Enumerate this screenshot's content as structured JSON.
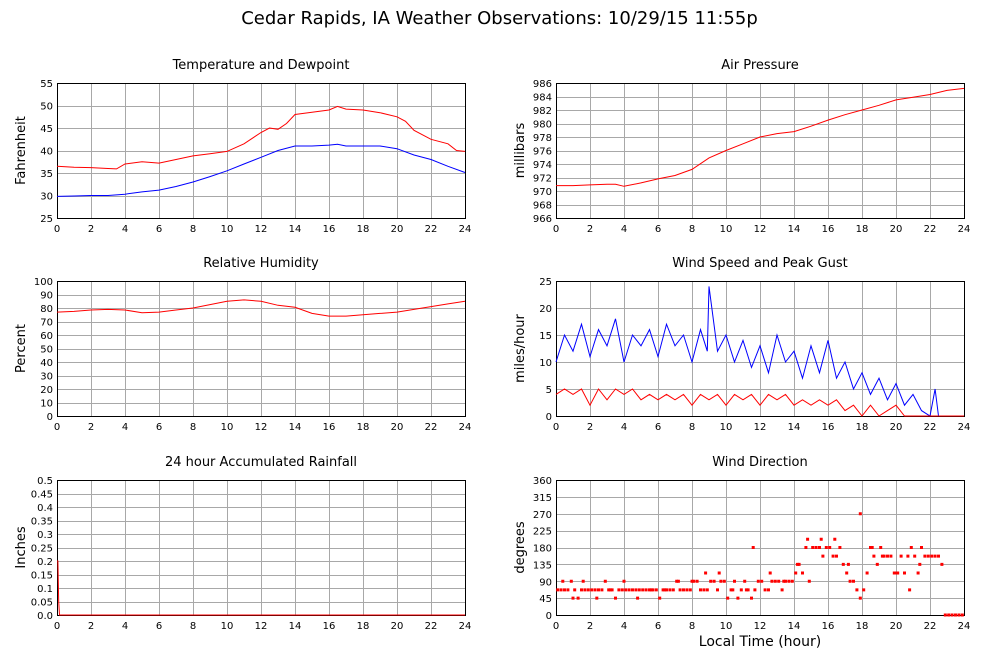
{
  "page": {
    "title": "Cedar Rapids, IA Weather Observations: 10/29/15 11:55p",
    "x_axis_label": "Local Time (hour)"
  },
  "chart_data": [
    {
      "type": "line",
      "title": "Temperature and Dewpoint",
      "xlabel": "",
      "ylabel": "Fahrenheit",
      "xlim": [
        0,
        24
      ],
      "ylim": [
        25,
        55
      ],
      "xticks": [
        0,
        2,
        4,
        6,
        8,
        10,
        12,
        14,
        16,
        18,
        20,
        22,
        24
      ],
      "yticks": [
        25,
        30,
        35,
        40,
        45,
        50,
        55
      ],
      "grid": true,
      "series": [
        {
          "color": "#ff0000",
          "x": [
            0,
            1,
            2,
            3,
            3.5,
            4,
            5,
            6,
            7,
            8,
            9,
            10,
            11,
            12,
            12.5,
            13,
            13.5,
            14,
            15,
            16,
            16.5,
            17,
            18,
            19,
            20,
            20.5,
            21,
            22,
            23,
            23.5,
            24
          ],
          "y": [
            36.5,
            36.3,
            36.2,
            36,
            35.9,
            37,
            37.5,
            37.2,
            38,
            38.8,
            39.3,
            39.8,
            41.5,
            44,
            45,
            44.7,
            46,
            48,
            48.5,
            49,
            49.8,
            49.2,
            49,
            48.4,
            47.5,
            46.5,
            44.5,
            42.5,
            41.5,
            40,
            39.8
          ]
        },
        {
          "color": "#0000ff",
          "x": [
            0,
            1,
            2,
            3,
            4,
            5,
            6,
            7,
            8,
            9,
            10,
            11,
            12,
            13,
            14,
            15,
            16,
            16.5,
            17,
            18,
            19,
            20,
            21,
            22,
            23,
            24
          ],
          "y": [
            29.8,
            29.9,
            30,
            30,
            30.3,
            30.8,
            31.2,
            32,
            33,
            34.2,
            35.5,
            37,
            38.5,
            40,
            41,
            41,
            41.2,
            41.4,
            41,
            41,
            41,
            40.4,
            39,
            38,
            36.5,
            35.1
          ]
        }
      ]
    },
    {
      "type": "line",
      "title": "Air Pressure",
      "xlabel": "",
      "ylabel": "millibars",
      "xlim": [
        0,
        24
      ],
      "ylim": [
        966,
        986
      ],
      "xticks": [
        0,
        2,
        4,
        6,
        8,
        10,
        12,
        14,
        16,
        18,
        20,
        22,
        24
      ],
      "yticks": [
        966,
        968,
        970,
        972,
        974,
        976,
        978,
        980,
        982,
        984,
        986
      ],
      "grid": true,
      "series": [
        {
          "color": "#ff0000",
          "x": [
            0,
            1,
            2,
            3,
            3.5,
            4,
            5,
            6,
            7,
            8,
            9,
            10,
            11,
            12,
            13,
            14,
            15,
            16,
            17,
            18,
            19,
            20,
            21,
            22,
            23,
            24
          ],
          "y": [
            970.8,
            970.8,
            970.9,
            971,
            971,
            970.7,
            971.2,
            971.8,
            972.3,
            973.2,
            974.9,
            976,
            977,
            978,
            978.5,
            978.8,
            979.6,
            980.5,
            981.3,
            982,
            982.7,
            983.5,
            983.9,
            984.3,
            984.9,
            985.2
          ]
        }
      ]
    },
    {
      "type": "line",
      "title": "Relative Humidity",
      "xlabel": "",
      "ylabel": "Percent",
      "xlim": [
        0,
        24
      ],
      "ylim": [
        0,
        100
      ],
      "xticks": [
        0,
        2,
        4,
        6,
        8,
        10,
        12,
        14,
        16,
        18,
        20,
        22,
        24
      ],
      "yticks": [
        0,
        10,
        20,
        30,
        40,
        50,
        60,
        70,
        80,
        90,
        100
      ],
      "grid": true,
      "series": [
        {
          "color": "#ff0000",
          "x": [
            0,
            1,
            2,
            3,
            4,
            5,
            6,
            7,
            8,
            9,
            10,
            11,
            12,
            13,
            14,
            15,
            16,
            17,
            18,
            19,
            20,
            21,
            22,
            23,
            24
          ],
          "y": [
            77,
            77.5,
            78.5,
            79,
            78.5,
            76.5,
            77,
            78.5,
            80,
            82.5,
            85,
            86,
            85,
            82,
            80.5,
            76,
            74,
            74,
            75,
            76,
            77,
            79,
            81,
            83,
            85
          ]
        }
      ]
    },
    {
      "type": "line",
      "title": "Wind Speed and Peak Gust",
      "xlabel": "",
      "ylabel": "miles/hour",
      "xlim": [
        0,
        24
      ],
      "ylim": [
        0,
        25
      ],
      "xticks": [
        0,
        2,
        4,
        6,
        8,
        10,
        12,
        14,
        16,
        18,
        20,
        22,
        24
      ],
      "yticks": [
        0,
        5,
        10,
        15,
        20,
        25
      ],
      "grid": true,
      "series": [
        {
          "color": "#0000ff",
          "x": [
            0,
            0.5,
            1,
            1.5,
            2,
            2.5,
            3,
            3.5,
            4,
            4.5,
            5,
            5.5,
            6,
            6.5,
            7,
            7.5,
            8,
            8.5,
            8.9,
            9,
            9.5,
            10,
            10.5,
            11,
            11.5,
            12,
            12.5,
            13,
            13.5,
            14,
            14.5,
            15,
            15.5,
            16,
            16.5,
            17,
            17.5,
            18,
            18.5,
            19,
            19.5,
            20,
            20.5,
            21,
            21.5,
            22,
            22.3,
            22.5,
            23,
            24
          ],
          "y": [
            10,
            15,
            12,
            17,
            11,
            16,
            13,
            18,
            10,
            15,
            13,
            16,
            11,
            17,
            13,
            15,
            10,
            16,
            12,
            24,
            12,
            15,
            10,
            14,
            9,
            13,
            8,
            15,
            10,
            12,
            7,
            13,
            8,
            14,
            7,
            10,
            5,
            8,
            4,
            7,
            3,
            6,
            2,
            4,
            1,
            0,
            5,
            0,
            0,
            0
          ]
        },
        {
          "color": "#ff0000",
          "x": [
            0,
            0.5,
            1,
            1.5,
            2,
            2.5,
            3,
            3.5,
            4,
            4.5,
            5,
            5.5,
            6,
            6.5,
            7,
            7.5,
            8,
            8.5,
            9,
            9.5,
            10,
            10.5,
            11,
            11.5,
            12,
            12.5,
            13,
            13.5,
            14,
            14.5,
            15,
            15.5,
            16,
            16.5,
            17,
            17.5,
            18,
            18.5,
            19,
            19.5,
            20,
            20.5,
            21,
            22,
            24
          ],
          "y": [
            4,
            5,
            4,
            5,
            2,
            5,
            3,
            5,
            4,
            5,
            3,
            4,
            3,
            4,
            3,
            4,
            2,
            4,
            3,
            4,
            2,
            4,
            3,
            4,
            2,
            4,
            3,
            4,
            2,
            3,
            2,
            3,
            2,
            3,
            1,
            2,
            0,
            2,
            0,
            1,
            2,
            0,
            0,
            0,
            0
          ]
        }
      ]
    },
    {
      "type": "line",
      "title": "24 hour Accumulated Rainfall",
      "xlabel": "",
      "ylabel": "Inches",
      "xlim": [
        0,
        24
      ],
      "ylim": [
        0,
        0.5
      ],
      "xticks": [
        0,
        2,
        4,
        6,
        8,
        10,
        12,
        14,
        16,
        18,
        20,
        22,
        24
      ],
      "yticks": [
        0,
        0.05,
        0.1,
        0.15,
        0.2,
        0.25,
        0.3,
        0.35,
        0.4,
        0.45,
        0.5
      ],
      "yticklabels": [
        "0.0",
        "0.05",
        "0.1",
        "0.15",
        "0.2",
        "0.25",
        "0.3",
        "0.35",
        "0.4",
        "0.45",
        "0.5"
      ],
      "grid": true,
      "series": [
        {
          "color": "#ff0000",
          "x": [
            0,
            0.05,
            0.1,
            0.15,
            24
          ],
          "y": [
            0.2,
            0.2,
            0.05,
            0,
            0
          ]
        }
      ]
    },
    {
      "type": "scatter",
      "title": "Wind Direction",
      "xlabel": "",
      "ylabel": "degrees",
      "xlim": [
        0,
        24
      ],
      "ylim": [
        0,
        360
      ],
      "xticks": [
        0,
        2,
        4,
        6,
        8,
        10,
        12,
        14,
        16,
        18,
        20,
        22,
        24
      ],
      "yticks": [
        0,
        45,
        90,
        135,
        180,
        225,
        270,
        315,
        360
      ],
      "grid": true,
      "series": [
        {
          "color": "#ff0000",
          "x": [
            0.1,
            0.3,
            0.5,
            0.7,
            0.9,
            1.1,
            1.3,
            1.5,
            1.7,
            1.9,
            2.1,
            2.3,
            2.5,
            2.7,
            2.9,
            3.1,
            3.3,
            3.5,
            3.7,
            3.9,
            4.1,
            4.3,
            4.5,
            4.7,
            4.9,
            5.1,
            5.3,
            5.5,
            5.7,
            5.9,
            6.1,
            6.3,
            6.5,
            6.7,
            6.9,
            7.1,
            7.3,
            7.5,
            7.7,
            7.9,
            8.1,
            8.3,
            8.5,
            8.7,
            8.9,
            9.1,
            9.3,
            9.5,
            9.7,
            9.9,
            10.1,
            10.3,
            10.5,
            10.7,
            10.9,
            11.1,
            11.3,
            11.5,
            11.7,
            11.9,
            12.1,
            12.3,
            12.5,
            12.7,
            12.9,
            13.1,
            13.3,
            13.5,
            13.7,
            13.9,
            14.1,
            14.3,
            14.5,
            14.7,
            14.9,
            15.1,
            15.3,
            15.5,
            15.7,
            15.9,
            16.1,
            16.3,
            16.5,
            16.7,
            16.9,
            17.1,
            17.3,
            17.5,
            17.7,
            17.9,
            18.1,
            18.3,
            18.5,
            18.7,
            18.9,
            19.1,
            19.3,
            19.5,
            19.7,
            19.9,
            20.1,
            20.3,
            20.5,
            20.7,
            20.9,
            21.1,
            21.3,
            21.5,
            21.7,
            21.9,
            22.1,
            22.3,
            22.5,
            22.7,
            22.9,
            23.1,
            23.3,
            23.5,
            23.7,
            23.9,
            0.4,
            1.0,
            1.6,
            2.4,
            3.2,
            4.0,
            4.8,
            5.6,
            6.4,
            7.2,
            8.0,
            8.8,
            9.6,
            10.4,
            11.2,
            11.6,
            12.6,
            13.4,
            14.2,
            14.8,
            15.6,
            16.4,
            17.2,
            17.9,
            18.6,
            19.2,
            20.0,
            20.8,
            21.4
          ],
          "y": [
            67,
            67,
            67,
            67,
            90,
            67,
            45,
            67,
            67,
            67,
            67,
            67,
            67,
            67,
            90,
            67,
            67,
            45,
            67,
            67,
            67,
            67,
            67,
            67,
            67,
            67,
            67,
            67,
            67,
            67,
            45,
            67,
            67,
            67,
            67,
            90,
            67,
            67,
            67,
            67,
            90,
            90,
            67,
            67,
            67,
            90,
            90,
            67,
            90,
            90,
            45,
            67,
            90,
            45,
            67,
            90,
            67,
            45,
            67,
            90,
            90,
            67,
            67,
            90,
            90,
            90,
            67,
            90,
            90,
            90,
            112,
            135,
            112,
            180,
            90,
            180,
            180,
            180,
            157,
            180,
            180,
            157,
            157,
            180,
            135,
            112,
            90,
            90,
            67,
            45,
            67,
            112,
            180,
            157,
            135,
            180,
            157,
            157,
            157,
            112,
            112,
            157,
            112,
            157,
            180,
            157,
            112,
            180,
            157,
            157,
            157,
            157,
            157,
            135,
            0,
            0,
            0,
            0,
            0,
            0,
            90,
            45,
            90,
            45,
            67,
            90,
            45,
            67,
            67,
            90,
            90,
            112,
            112,
            67,
            67,
            180,
            112,
            90,
            135,
            202,
            202,
            202,
            135,
            270,
            180,
            157,
            112,
            67,
            135
          ]
        }
      ]
    }
  ]
}
